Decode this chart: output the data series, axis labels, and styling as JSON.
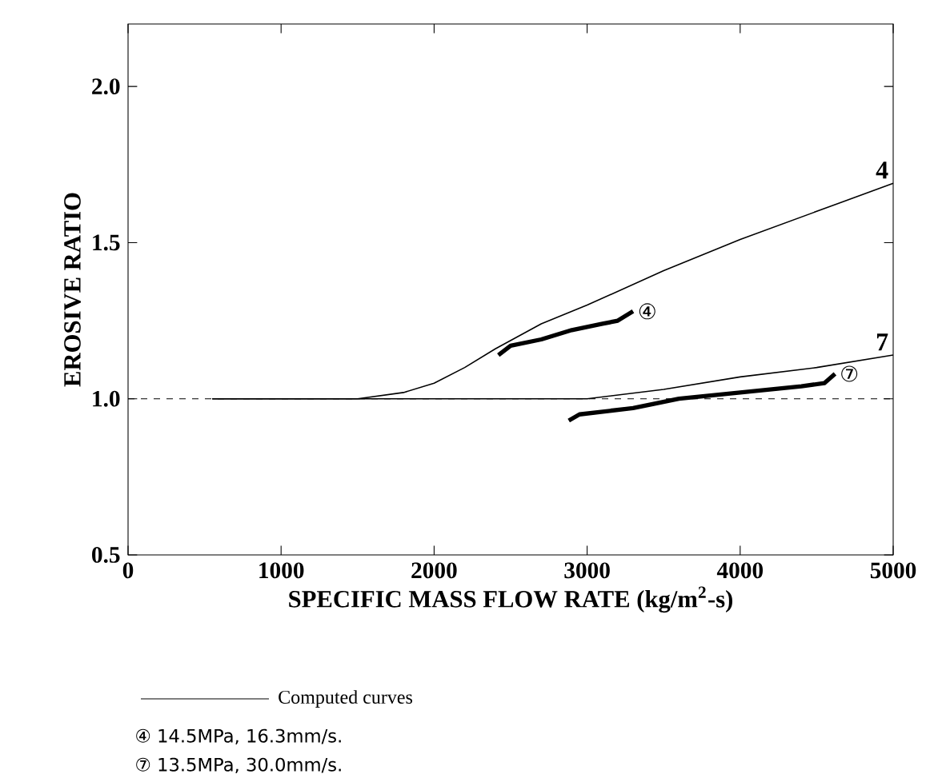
{
  "chart_data": {
    "type": "line",
    "xlabel": "SPECIFIC MASS FLOW RATE (kg/m$^{2}$-s)",
    "ylabel": "EROSIVE RATIO",
    "xlim": [
      0,
      5000
    ],
    "ylim": [
      0.5,
      2.2
    ],
    "xticks": [
      0,
      1000,
      2000,
      3000,
      4000,
      5000
    ],
    "yticks": [
      {
        "value": 0.5,
        "label": "0.5"
      },
      {
        "value": 1.0,
        "label": "1.0"
      },
      {
        "value": 1.5,
        "label": "1.5"
      },
      {
        "value": 2.0,
        "label": "2.0"
      }
    ],
    "grid": false,
    "marker": "none",
    "line_style": "solid",
    "series": [
      {
        "name": "4",
        "color": "#000000",
        "x": [
          550,
          1000,
          1500,
          1800,
          2000,
          2200,
          2400,
          2700,
          3000,
          3500,
          4000,
          4500,
          5000
        ],
        "values": [
          1.0,
          1.0,
          1.0,
          1.02,
          1.05,
          1.1,
          1.16,
          1.24,
          1.3,
          1.41,
          1.51,
          1.6,
          1.69
        ]
      },
      {
        "name": "7",
        "color": "#000000",
        "x": [
          550,
          1500,
          2500,
          3000,
          3500,
          4000,
          4500,
          5000
        ],
        "values": [
          1.0,
          1.0,
          1.0,
          1.0,
          1.03,
          1.07,
          1.1,
          1.14
        ]
      },
      {
        "name": "④",
        "color": "#000000",
        "x": [
          2420,
          2500,
          2700,
          2900,
          3100,
          3200,
          3300
        ],
        "values": [
          1.14,
          1.17,
          1.19,
          1.22,
          1.24,
          1.25,
          1.28
        ]
      },
      {
        "name": "⑦",
        "color": "#000000",
        "x": [
          2880,
          2950,
          3300,
          3600,
          4000,
          4400,
          4550,
          4620
        ],
        "values": [
          0.93,
          0.95,
          0.97,
          1.0,
          1.02,
          1.04,
          1.05,
          1.08
        ]
      }
    ],
    "ref_lines": [
      {
        "axis": "y",
        "value": 1.0,
        "line_style": "dashed",
        "color": "#000000"
      }
    ],
    "annotations": [
      "Computed curves",
      "④  14.5MPa, 16.3mm/s.",
      "⑦  13.5MPa, 30.0mm/s."
    ]
  }
}
